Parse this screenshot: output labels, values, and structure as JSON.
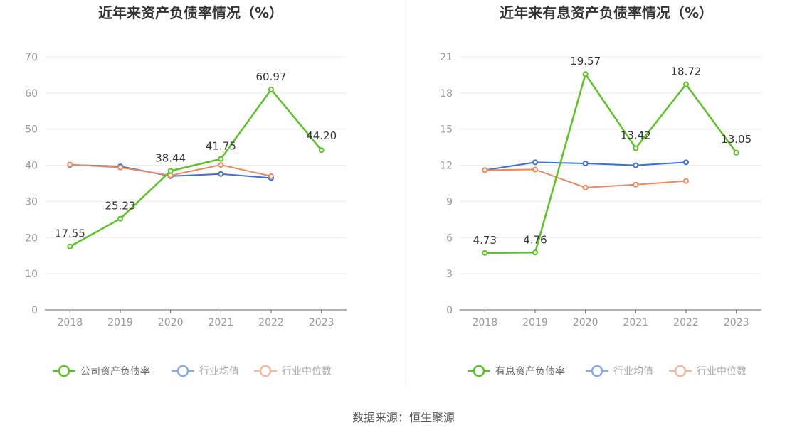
{
  "source": "数据来源：恒生聚源",
  "colors": {
    "company": "#5ac324",
    "avg": "#3a6fd8",
    "median": "#ef8859",
    "grid": "#e6e9f0",
    "axis": "#666666"
  },
  "chart_data": [
    {
      "type": "line",
      "title": "近年来资产负债率情况（%）",
      "categories": [
        "2018",
        "2019",
        "2020",
        "2021",
        "2022",
        "2023"
      ],
      "ylim": [
        0,
        70
      ],
      "yticks": [
        0,
        10,
        20,
        30,
        40,
        50,
        60,
        70
      ],
      "series": [
        {
          "name": "公司资产负债率",
          "key": "company",
          "values": [
            17.55,
            25.23,
            38.44,
            41.75,
            60.97,
            44.2
          ],
          "labels": [
            "17.55",
            "25.23",
            "38.44",
            "41.75",
            "60.97",
            "44.20"
          ]
        },
        {
          "name": "行业均值",
          "key": "avg",
          "values": [
            40.1,
            39.7,
            37.0,
            37.6,
            36.5,
            null
          ]
        },
        {
          "name": "行业中位数",
          "key": "median",
          "values": [
            40.2,
            39.4,
            37.2,
            40.1,
            37.0,
            null
          ]
        }
      ]
    },
    {
      "type": "line",
      "title": "近年来有息资产负债率情况（%）",
      "categories": [
        "2018",
        "2019",
        "2020",
        "2021",
        "2022",
        "2023"
      ],
      "ylim": [
        0,
        21
      ],
      "yticks": [
        0,
        3,
        6,
        9,
        12,
        15,
        18,
        21
      ],
      "series": [
        {
          "name": "有息资产负债率",
          "key": "company",
          "values": [
            4.73,
            4.76,
            19.57,
            13.42,
            18.72,
            13.05
          ],
          "labels": [
            "4.73",
            "4.76",
            "19.57",
            "13.42",
            "18.72",
            "13.05"
          ]
        },
        {
          "name": "行业均值",
          "key": "avg",
          "values": [
            11.6,
            12.25,
            12.15,
            12.0,
            12.25,
            null
          ]
        },
        {
          "name": "行业中位数",
          "key": "median",
          "values": [
            11.6,
            11.65,
            10.15,
            10.4,
            10.7,
            null
          ]
        }
      ]
    }
  ]
}
